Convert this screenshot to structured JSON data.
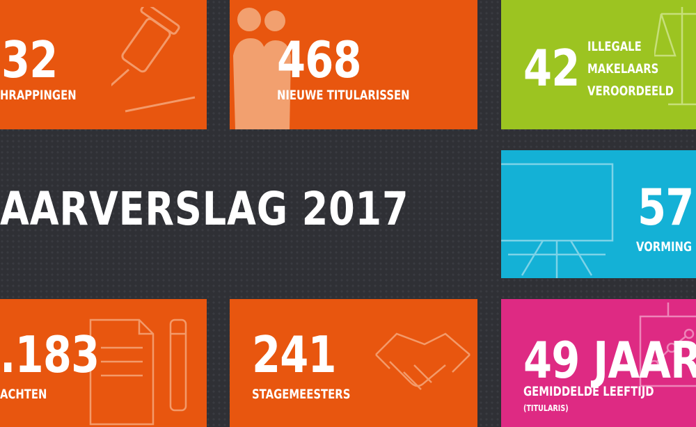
{
  "title": "AARVERSLAG 2017",
  "tiles": {
    "top_left": {
      "number": "32",
      "label": "HRAPPINGEN"
    },
    "top_middle": {
      "number": "468",
      "label": "NIEUWE TITULARISSEN"
    },
    "top_right": {
      "number": "42",
      "label_lines": [
        "ILLEGALE",
        "MAKELAARS",
        "VEROORDEELD"
      ]
    },
    "middle_right": {
      "number": "57",
      "label": "VORMING"
    },
    "bottom_left": {
      "number": ".183",
      "label": "ACHTEN"
    },
    "bottom_middle": {
      "number": "241",
      "label": "STAGEMEESTERS"
    },
    "bottom_right": {
      "number": "49 JAAR",
      "label": "GEMIDDELDE LEEFTIJD",
      "sublabel": "(TITULARIS)"
    }
  },
  "colors": {
    "background": "#2f3035",
    "orange": "#e8560f",
    "lime": "#9cc421",
    "cyan": "#14b1d6",
    "pink": "#de2a83"
  },
  "icons": [
    "gavel-icon",
    "couple-icon",
    "scales-icon",
    "presentation-board-icon",
    "documents-icon",
    "handshake-icon",
    "flipchart-icon"
  ]
}
